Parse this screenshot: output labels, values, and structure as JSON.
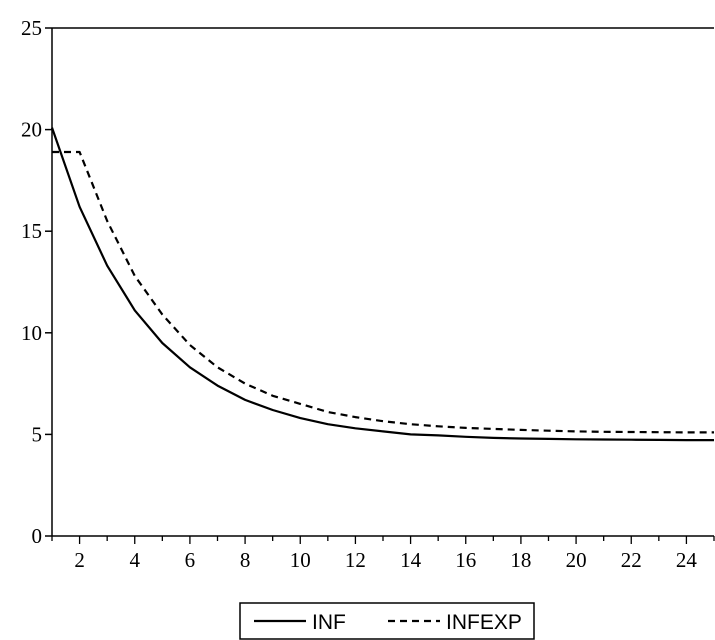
{
  "chart_data": {
    "type": "line",
    "title": "",
    "xlabel": "",
    "ylabel": "",
    "x": [
      1,
      2,
      3,
      4,
      5,
      6,
      7,
      8,
      9,
      10,
      11,
      12,
      13,
      14,
      15,
      16,
      17,
      18,
      19,
      20,
      21,
      22,
      23,
      24,
      25
    ],
    "xlim": [
      1,
      25
    ],
    "ylim": [
      0,
      25
    ],
    "x_ticks": [
      2,
      4,
      6,
      8,
      10,
      12,
      14,
      16,
      18,
      20,
      22,
      24
    ],
    "y_ticks": [
      0,
      5,
      10,
      15,
      20,
      25
    ],
    "grid": false,
    "legend_position": "bottom",
    "series": [
      {
        "name": "INF",
        "style": "solid",
        "color": "#000000",
        "values": [
          20.1,
          16.2,
          13.3,
          11.1,
          9.5,
          8.3,
          7.4,
          6.7,
          6.2,
          5.8,
          5.5,
          5.3,
          5.15,
          5.0,
          4.95,
          4.88,
          4.83,
          4.8,
          4.78,
          4.76,
          4.75,
          4.74,
          4.73,
          4.72,
          4.72
        ]
      },
      {
        "name": "INFEXP",
        "style": "dashed",
        "color": "#000000",
        "values": [
          18.9,
          18.9,
          15.5,
          12.8,
          10.9,
          9.4,
          8.3,
          7.5,
          6.9,
          6.5,
          6.1,
          5.85,
          5.65,
          5.5,
          5.4,
          5.32,
          5.27,
          5.22,
          5.18,
          5.15,
          5.13,
          5.12,
          5.11,
          5.1,
          5.1
        ]
      }
    ]
  }
}
